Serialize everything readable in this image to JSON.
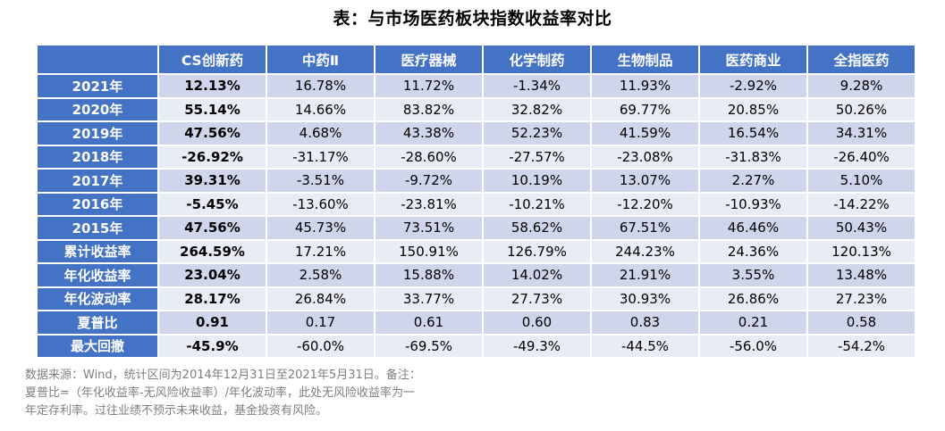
{
  "title": "表：与市场医药板块指数收益率对比",
  "columns": [
    "",
    "CS创新药",
    "中药Ⅱ",
    "医疗器械",
    "化学制药",
    "生物制品",
    "医药商业",
    "全指医药"
  ],
  "rows": [
    {
      "label": "2021年",
      "values": [
        "12.13%",
        "16.78%",
        "11.72%",
        "-1.34%",
        "11.93%",
        "-2.92%",
        "9.28%"
      ]
    },
    {
      "label": "2020年",
      "values": [
        "55.14%",
        "14.66%",
        "83.82%",
        "32.82%",
        "69.77%",
        "20.85%",
        "50.26%"
      ]
    },
    {
      "label": "2019年",
      "values": [
        "47.56%",
        "4.68%",
        "43.38%",
        "52.23%",
        "41.59%",
        "16.54%",
        "34.31%"
      ]
    },
    {
      "label": "2018年",
      "values": [
        "-26.92%",
        "-31.17%",
        "-28.60%",
        "-27.57%",
        "-23.08%",
        "-31.83%",
        "-26.40%"
      ]
    },
    {
      "label": "2017年",
      "values": [
        "39.31%",
        "-3.51%",
        "-9.72%",
        "10.19%",
        "13.07%",
        "2.27%",
        "5.10%"
      ]
    },
    {
      "label": "2016年",
      "values": [
        "-5.45%",
        "-13.60%",
        "-23.81%",
        "-10.21%",
        "-12.20%",
        "-10.93%",
        "-14.22%"
      ]
    },
    {
      "label": "2015年",
      "values": [
        "47.56%",
        "45.73%",
        "73.51%",
        "58.62%",
        "67.51%",
        "46.46%",
        "50.43%"
      ]
    },
    {
      "label": "累计收益率",
      "values": [
        "264.59%",
        "17.21%",
        "150.91%",
        "126.79%",
        "244.23%",
        "24.36%",
        "120.13%"
      ]
    },
    {
      "label": "年化收益率",
      "values": [
        "23.04%",
        "2.58%",
        "15.88%",
        "14.02%",
        "21.91%",
        "3.55%",
        "13.48%"
      ]
    },
    {
      "label": "年化波动率",
      "values": [
        "28.17%",
        "26.84%",
        "33.77%",
        "27.73%",
        "30.93%",
        "26.86%",
        "27.23%"
      ]
    },
    {
      "label": "夏普比",
      "values": [
        "0.91",
        "0.17",
        "0.61",
        "0.60",
        "0.83",
        "0.21",
        "0.58"
      ]
    },
    {
      "label": "最大回撤",
      "values": [
        "-45.9%",
        "-60.0%",
        "-69.5%",
        "-49.3%",
        "-44.5%",
        "-56.0%",
        "-54.2%"
      ]
    }
  ],
  "note_lines": [
    "数据来源：Wind，统计区间为2014年12月31日至2021年5月31日。备注：",
    "夏普比=（年化收益率-无风险收益率）/年化波动率，此处无风险收益率为一",
    "年定存利率。过往业绩不预示未来收益，基金投资有风险。"
  ],
  "colors": {
    "header_bg": "#4472c4",
    "row_odd": "#cfd5ea",
    "row_even": "#e9ebf5",
    "note_text": "#7f7f7f"
  }
}
